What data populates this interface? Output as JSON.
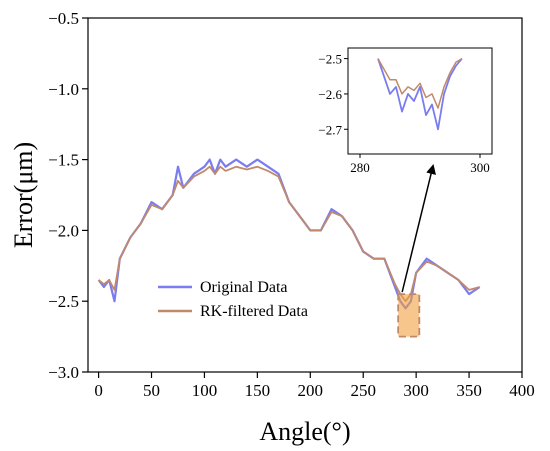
{
  "chart_data": [
    {
      "type": "line",
      "xlabel": "Angle(°)",
      "ylabel": "Error(μm)",
      "xlim": [
        -10,
        400
      ],
      "ylim": [
        -3.0,
        -0.5
      ],
      "x_ticks": [
        0,
        50,
        100,
        150,
        200,
        250,
        300,
        350,
        400
      ],
      "y_ticks": [
        -0.5,
        -1.0,
        -1.5,
        -2.0,
        -2.5,
        -3.0
      ],
      "x_tick_labels": [
        "0",
        "50",
        "100",
        "150",
        "200",
        "250",
        "300",
        "350",
        "400"
      ],
      "y_tick_labels": [
        "−0.5",
        "−1.0",
        "−1.5",
        "−2.0",
        "−2.5",
        "−3.0"
      ],
      "grid": false,
      "legend_position": "lower-left",
      "series": [
        {
          "name": "Original Data",
          "color": "#7b7cf0",
          "x": [
            0,
            5,
            10,
            15,
            20,
            30,
            40,
            50,
            60,
            70,
            75,
            80,
            90,
            100,
            105,
            110,
            115,
            120,
            130,
            140,
            150,
            160,
            170,
            180,
            190,
            200,
            210,
            220,
            230,
            240,
            250,
            260,
            270,
            280,
            285,
            290,
            295,
            300,
            310,
            320,
            330,
            340,
            350,
            360
          ],
          "y": [
            -2.35,
            -2.4,
            -2.35,
            -2.5,
            -2.2,
            -2.05,
            -1.95,
            -1.8,
            -1.85,
            -1.75,
            -1.55,
            -1.7,
            -1.6,
            -1.55,
            -1.5,
            -1.6,
            -1.5,
            -1.55,
            -1.5,
            -1.55,
            -1.5,
            -1.55,
            -1.6,
            -1.8,
            -1.9,
            -2.0,
            -2.0,
            -1.85,
            -1.9,
            -2.0,
            -2.15,
            -2.2,
            -2.2,
            -2.4,
            -2.5,
            -2.55,
            -2.5,
            -2.3,
            -2.2,
            -2.25,
            -2.3,
            -2.35,
            -2.45,
            -2.4
          ]
        },
        {
          "name": "RK-filtered Data",
          "color": "#c08a6a",
          "x": [
            0,
            5,
            10,
            15,
            20,
            30,
            40,
            50,
            60,
            70,
            75,
            80,
            90,
            100,
            105,
            110,
            115,
            120,
            130,
            140,
            150,
            160,
            170,
            180,
            190,
            200,
            210,
            220,
            230,
            240,
            250,
            260,
            270,
            280,
            285,
            290,
            295,
            300,
            310,
            320,
            330,
            340,
            350,
            360
          ],
          "y": [
            -2.35,
            -2.38,
            -2.35,
            -2.42,
            -2.2,
            -2.05,
            -1.95,
            -1.82,
            -1.85,
            -1.75,
            -1.65,
            -1.7,
            -1.62,
            -1.58,
            -1.55,
            -1.6,
            -1.55,
            -1.58,
            -1.55,
            -1.57,
            -1.55,
            -1.58,
            -1.62,
            -1.8,
            -1.9,
            -2.0,
            -2.0,
            -1.87,
            -1.9,
            -2.0,
            -2.15,
            -2.2,
            -2.2,
            -2.38,
            -2.45,
            -2.5,
            -2.45,
            -2.3,
            -2.22,
            -2.25,
            -2.3,
            -2.35,
            -2.42,
            -2.4
          ]
        }
      ],
      "highlight_box": {
        "x_range": [
          283,
          303
        ],
        "y_range": [
          -2.75,
          -2.45
        ],
        "color": "#f0a040"
      },
      "annotation": "arrow from highlight box to inset"
    },
    {
      "type": "line",
      "inset": true,
      "xlim": [
        278,
        302
      ],
      "ylim": [
        -2.77,
        -2.47
      ],
      "x_ticks": [
        280,
        300
      ],
      "y_ticks": [
        -2.5,
        -2.6,
        -2.7
      ],
      "x_tick_labels": [
        "280",
        "300"
      ],
      "y_tick_labels": [
        "−2.5",
        "−2.6",
        "−2.7"
      ],
      "series": [
        {
          "name": "Original Data",
          "color": "#7b7cf0",
          "x": [
            283,
            284,
            285,
            286,
            287,
            288,
            289,
            290,
            291,
            292,
            293,
            294,
            295,
            296,
            297
          ],
          "y": [
            -2.5,
            -2.55,
            -2.6,
            -2.58,
            -2.65,
            -2.6,
            -2.62,
            -2.58,
            -2.66,
            -2.63,
            -2.7,
            -2.6,
            -2.55,
            -2.52,
            -2.5
          ]
        },
        {
          "name": "RK-filtered Data",
          "color": "#c08a6a",
          "x": [
            283,
            284,
            285,
            286,
            287,
            288,
            289,
            290,
            291,
            292,
            293,
            294,
            295,
            296,
            297
          ],
          "y": [
            -2.5,
            -2.53,
            -2.56,
            -2.56,
            -2.6,
            -2.58,
            -2.59,
            -2.57,
            -2.61,
            -2.6,
            -2.64,
            -2.58,
            -2.54,
            -2.51,
            -2.5
          ]
        }
      ]
    }
  ]
}
